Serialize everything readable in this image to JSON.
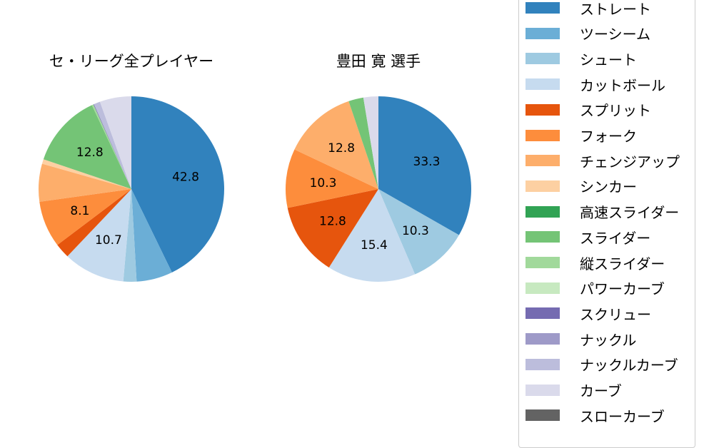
{
  "chart_data": [
    {
      "type": "pie",
      "title": "セ・リーグ全プレイヤー",
      "start_angle": 90,
      "direction": "clockwise",
      "categories": [
        "ストレート",
        "ツーシーム",
        "シュート",
        "カットボール",
        "スプリット",
        "フォーク",
        "チェンジアップ",
        "シンカー",
        "高速スライダー",
        "スライダー",
        "縦スライダー",
        "パワーカーブ",
        "スクリュー",
        "ナックル",
        "ナックルカーブ",
        "カーブ",
        "スローカーブ"
      ],
      "values": [
        42.8,
        6.3,
        2.3,
        10.7,
        2.6,
        8.1,
        6.6,
        0.8,
        0.0,
        12.8,
        0.3,
        0.0,
        0.1,
        0.0,
        1.1,
        5.5,
        0.0
      ],
      "labels_shown": [
        "42.8",
        "10.7",
        "8.1",
        "12.8"
      ]
    },
    {
      "type": "pie",
      "title": "豊田 寛  選手",
      "start_angle": 90,
      "direction": "clockwise",
      "categories": [
        "ストレート",
        "ツーシーム",
        "シュート",
        "カットボール",
        "スプリット",
        "フォーク",
        "チェンジアップ",
        "シンカー",
        "高速スライダー",
        "スライダー",
        "縦スライダー",
        "パワーカーブ",
        "スクリュー",
        "ナックル",
        "ナックルカーブ",
        "カーブ",
        "スローカーブ"
      ],
      "values": [
        33.3,
        0,
        10.3,
        15.4,
        12.8,
        10.3,
        12.8,
        0,
        0,
        2.6,
        0,
        0,
        0,
        0,
        0,
        2.6,
        0
      ],
      "labels_shown": [
        "33.3",
        "10.3",
        "15.4",
        "12.8",
        "10.3",
        "12.8"
      ]
    }
  ],
  "titles": {
    "left": "セ・リーグ全プレイヤー",
    "right": "豊田 寛  選手"
  },
  "legend": [
    {
      "label": "ストレート",
      "color": "#3182bd"
    },
    {
      "label": "ツーシーム",
      "color": "#6baed6"
    },
    {
      "label": "シュート",
      "color": "#9ecae1"
    },
    {
      "label": "カットボール",
      "color": "#c6dbef"
    },
    {
      "label": "スプリット",
      "color": "#e6550d"
    },
    {
      "label": "フォーク",
      "color": "#fd8d3c"
    },
    {
      "label": "チェンジアップ",
      "color": "#fdae6b"
    },
    {
      "label": "シンカー",
      "color": "#fdd0a2"
    },
    {
      "label": "高速スライダー",
      "color": "#31a354"
    },
    {
      "label": "スライダー",
      "color": "#74c476"
    },
    {
      "label": "縦スライダー",
      "color": "#a1d99b"
    },
    {
      "label": "パワーカーブ",
      "color": "#c7e9c0"
    },
    {
      "label": "スクリュー",
      "color": "#756bb1"
    },
    {
      "label": "ナックル",
      "color": "#9e9ac8"
    },
    {
      "label": "ナックルカーブ",
      "color": "#bcbddc"
    },
    {
      "label": "カーブ",
      "color": "#dadaeb"
    },
    {
      "label": "スローカーブ",
      "color": "#636363"
    }
  ]
}
